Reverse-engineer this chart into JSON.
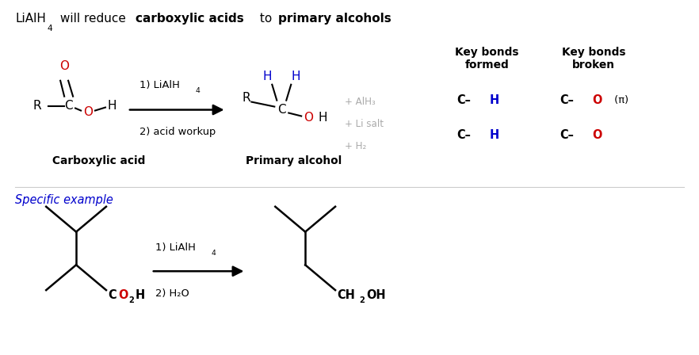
{
  "bg_color": "#ffffff",
  "color_black": "#000000",
  "color_red": "#cc0000",
  "color_blue": "#0000cc",
  "color_gray": "#aaaaaa",
  "byproducts": [
    "+ AlH₃",
    "+ Li salt",
    "+ H₂"
  ]
}
